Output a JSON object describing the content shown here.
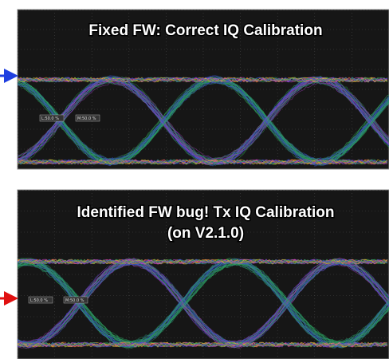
{
  "panels": [
    {
      "title_lines": [
        "Fixed FW: Correct IQ Calibration"
      ],
      "markers": [
        "L:50.0 %",
        "M:50.0 %"
      ]
    },
    {
      "title_lines": [
        "Identified FW bug! Tx IQ Calibration",
        "(on V2.1.0)"
      ],
      "markers": [
        "L:50.0 %",
        "M:50.0 %"
      ]
    }
  ]
}
